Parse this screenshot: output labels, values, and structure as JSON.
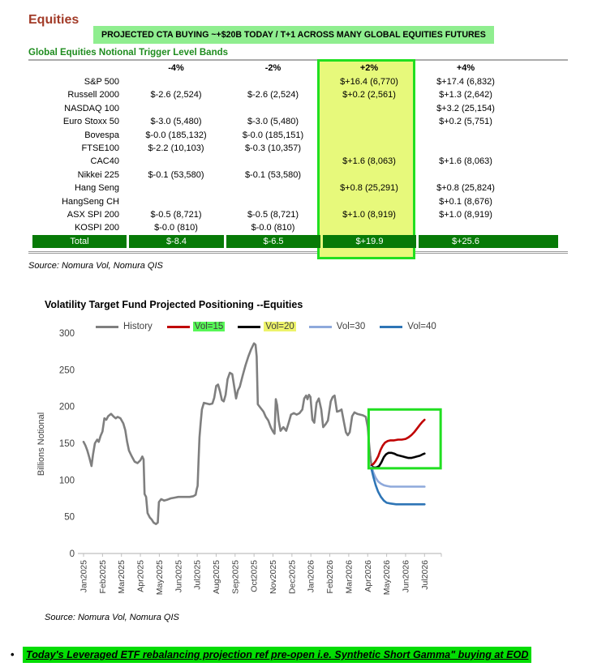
{
  "page": {
    "title": "Equities",
    "banner": "PROJECTED CTA BUYING ~+$20B TODAY / T+1 ACROSS MANY GLOBAL EQUITIES FUTURES",
    "bullet_marker": "•",
    "bullet": "Today's Leveraged ETF rebalancing projection ref pre-open i.e. Synthetic Short Gamma\" buying at EOD"
  },
  "table": {
    "heading": "Global Equities Notional Trigger Level Bands",
    "source": "Source: Nomura Vol, Nomura QIS",
    "columns": [
      "-4%",
      "-2%",
      "+2%",
      "+4%"
    ],
    "highlighted_column": "+2%",
    "rows": [
      {
        "label": "S&P 500",
        "values": [
          "",
          "",
          "$+16.4 (6,770)",
          "$+17.4 (6,832)"
        ]
      },
      {
        "label": "Russell 2000",
        "values": [
          "$-2.6 (2,524)",
          "$-2.6 (2,524)",
          "$+0.2 (2,561)",
          "$+1.3 (2,642)"
        ]
      },
      {
        "label": "NASDAQ 100",
        "values": [
          "",
          "",
          "",
          "$+3.2 (25,154)"
        ]
      },
      {
        "label": "Euro Stoxx 50",
        "values": [
          "$-3.0 (5,480)",
          "$-3.0 (5,480)",
          "",
          "$+0.2 (5,751)"
        ]
      },
      {
        "label": "Bovespa",
        "values": [
          "$-0.0 (185,132)",
          "$-0.0 (185,151)",
          "",
          ""
        ]
      },
      {
        "label": "FTSE100",
        "values": [
          "$-2.2 (10,103)",
          "$-0.3 (10,357)",
          "",
          ""
        ]
      },
      {
        "label": "CAC40",
        "values": [
          "",
          "",
          "$+1.6 (8,063)",
          "$+1.6 (8,063)"
        ]
      },
      {
        "label": "Nikkei 225",
        "values": [
          "$-0.1 (53,580)",
          "$-0.1 (53,580)",
          "",
          ""
        ]
      },
      {
        "label": "Hang Seng",
        "values": [
          "",
          "",
          "$+0.8 (25,291)",
          "$+0.8 (25,824)"
        ]
      },
      {
        "label": "HangSeng CH",
        "values": [
          "",
          "",
          "",
          "$+0.1 (8,676)"
        ]
      },
      {
        "label": "ASX SPI 200",
        "values": [
          "$-0.5 (8,721)",
          "$-0.5 (8,721)",
          "$+1.0 (8,919)",
          "$+1.0 (8,919)"
        ]
      },
      {
        "label": "KOSPI 200",
        "values": [
          "$-0.0 (810)",
          "$-0.0 (810)",
          "",
          ""
        ]
      }
    ],
    "total": {
      "label": "Total",
      "values": [
        "$-8.4",
        "$-6.5",
        "$+19.9",
        "$+25.6"
      ]
    },
    "colors": {
      "highlight_fill": "#E7F97B",
      "highlight_border": "#21DF21",
      "total_row_fill": "#077A07",
      "banner_fill": "#8FEE8F",
      "heading_green": "#1E8C1E",
      "title_red": "#A23B28"
    }
  },
  "chart": {
    "title": "Volatility Target Fund Projected Positioning --Equities",
    "source": "Source: Nomura Vol, Nomura QIS"
  },
  "chart_data": {
    "type": "line",
    "title": "Volatility Target Fund Projected Positioning --Equities",
    "xlabel": "",
    "ylabel": "Billions Notional",
    "ylim": [
      0,
      300
    ],
    "yticks": [
      0,
      50,
      100,
      150,
      200,
      250,
      300
    ],
    "grid": false,
    "legend_position": "top",
    "x_labels": [
      "Jan2025",
      "Feb2025",
      "Mar2025",
      "Apr2025",
      "May2025",
      "Jun2025",
      "Jul2025",
      "Aug2025",
      "Sep2025",
      "Oct2025",
      "Nov2025",
      "Dec2025",
      "Jan2026",
      "Feb2026",
      "Mar2026",
      "Apr2026",
      "May2026",
      "Jun2026",
      "Jul2026"
    ],
    "x_unit": "months from Jan2025",
    "highlight_box": {
      "m_start": 15.05,
      "m_end": 18.85,
      "v_top": 196,
      "v_bottom": 116
    },
    "series": [
      {
        "name": "History",
        "color": "#7F7F7F",
        "label_bg": "",
        "points": [
          [
            0,
            152
          ],
          [
            0.1,
            147
          ],
          [
            0.2,
            140
          ],
          [
            0.3,
            131
          ],
          [
            0.42,
            119
          ],
          [
            0.5,
            135
          ],
          [
            0.6,
            150
          ],
          [
            0.72,
            155
          ],
          [
            0.8,
            152
          ],
          [
            0.9,
            160
          ],
          [
            1.0,
            166
          ],
          [
            1.1,
            184
          ],
          [
            1.2,
            182
          ],
          [
            1.3,
            187
          ],
          [
            1.45,
            190
          ],
          [
            1.6,
            186
          ],
          [
            1.7,
            184
          ],
          [
            1.8,
            186
          ],
          [
            1.95,
            184
          ],
          [
            2.1,
            177
          ],
          [
            2.2,
            168
          ],
          [
            2.3,
            152
          ],
          [
            2.4,
            140
          ],
          [
            2.55,
            132
          ],
          [
            2.7,
            125
          ],
          [
            2.85,
            123
          ],
          [
            3.0,
            127
          ],
          [
            3.1,
            132
          ],
          [
            3.17,
            128
          ],
          [
            3.22,
            81
          ],
          [
            3.3,
            77
          ],
          [
            3.38,
            55
          ],
          [
            3.5,
            49
          ],
          [
            3.6,
            46
          ],
          [
            3.7,
            42
          ],
          [
            3.82,
            40
          ],
          [
            3.92,
            42
          ],
          [
            3.98,
            70
          ],
          [
            4.1,
            74
          ],
          [
            4.25,
            72
          ],
          [
            4.4,
            73
          ],
          [
            4.6,
            75
          ],
          [
            4.8,
            76
          ],
          [
            5.0,
            77
          ],
          [
            5.2,
            77
          ],
          [
            5.4,
            77
          ],
          [
            5.6,
            77
          ],
          [
            5.8,
            78
          ],
          [
            5.92,
            80
          ],
          [
            5.97,
            87
          ],
          [
            6.02,
            92
          ],
          [
            6.07,
            125
          ],
          [
            6.12,
            158
          ],
          [
            6.18,
            177
          ],
          [
            6.25,
            196
          ],
          [
            6.35,
            205
          ],
          [
            6.5,
            204
          ],
          [
            6.65,
            203
          ],
          [
            6.8,
            204
          ],
          [
            6.9,
            212
          ],
          [
            7.0,
            228
          ],
          [
            7.1,
            230
          ],
          [
            7.2,
            221
          ],
          [
            7.3,
            209
          ],
          [
            7.4,
            207
          ],
          [
            7.5,
            216
          ],
          [
            7.6,
            237
          ],
          [
            7.72,
            246
          ],
          [
            7.85,
            244
          ],
          [
            7.95,
            228
          ],
          [
            8.05,
            211
          ],
          [
            8.15,
            222
          ],
          [
            8.25,
            227
          ],
          [
            8.4,
            242
          ],
          [
            8.55,
            256
          ],
          [
            8.7,
            268
          ],
          [
            8.85,
            278
          ],
          [
            9.0,
            286
          ],
          [
            9.08,
            284
          ],
          [
            9.14,
            268
          ],
          [
            9.2,
            203
          ],
          [
            9.35,
            198
          ],
          [
            9.5,
            193
          ],
          [
            9.62,
            186
          ],
          [
            9.75,
            181
          ],
          [
            9.88,
            172
          ],
          [
            10.0,
            166
          ],
          [
            10.08,
            163
          ],
          [
            10.15,
            210
          ],
          [
            10.22,
            202
          ],
          [
            10.3,
            181
          ],
          [
            10.4,
            167
          ],
          [
            10.55,
            172
          ],
          [
            10.7,
            167
          ],
          [
            10.82,
            177
          ],
          [
            10.95,
            189
          ],
          [
            11.1,
            191
          ],
          [
            11.25,
            189
          ],
          [
            11.4,
            191
          ],
          [
            11.55,
            196
          ],
          [
            11.65,
            211
          ],
          [
            11.75,
            215
          ],
          [
            11.82,
            210
          ],
          [
            11.9,
            216
          ],
          [
            11.98,
            213
          ],
          [
            12.08,
            182
          ],
          [
            12.18,
            178
          ],
          [
            12.3,
            205
          ],
          [
            12.42,
            211
          ],
          [
            12.55,
            196
          ],
          [
            12.65,
            172
          ],
          [
            12.78,
            176
          ],
          [
            12.9,
            181
          ],
          [
            13.05,
            207
          ],
          [
            13.15,
            213
          ],
          [
            13.25,
            215
          ],
          [
            13.38,
            193
          ],
          [
            13.5,
            194
          ],
          [
            13.62,
            196
          ],
          [
            13.75,
            178
          ],
          [
            13.85,
            165
          ],
          [
            13.95,
            161
          ],
          [
            14.05,
            165
          ],
          [
            14.18,
            187
          ],
          [
            14.3,
            192
          ],
          [
            14.45,
            190
          ],
          [
            14.6,
            189
          ],
          [
            14.75,
            188
          ],
          [
            14.9,
            186
          ],
          [
            15.0,
            172
          ],
          [
            15.07,
            150
          ],
          [
            15.13,
            134
          ],
          [
            15.2,
            120
          ]
        ]
      },
      {
        "name": "Vol=15",
        "color": "#C00000",
        "label_bg": "#57F757",
        "points": [
          [
            15.2,
            120
          ],
          [
            15.3,
            122
          ],
          [
            15.42,
            126
          ],
          [
            15.55,
            132
          ],
          [
            15.68,
            141
          ],
          [
            15.8,
            147
          ],
          [
            15.92,
            151
          ],
          [
            16.05,
            153
          ],
          [
            16.2,
            154
          ],
          [
            16.4,
            154
          ],
          [
            16.6,
            155
          ],
          [
            16.8,
            155
          ],
          [
            17.0,
            156
          ],
          [
            17.15,
            158
          ],
          [
            17.3,
            161
          ],
          [
            17.45,
            165
          ],
          [
            17.6,
            170
          ],
          [
            17.75,
            175
          ],
          [
            17.88,
            179
          ],
          [
            18.0,
            182
          ]
        ]
      },
      {
        "name": "Vol=20",
        "color": "#000000",
        "label_bg": "#EDF36B",
        "points": [
          [
            15.2,
            119
          ],
          [
            15.3,
            117
          ],
          [
            15.45,
            117
          ],
          [
            15.6,
            119
          ],
          [
            15.72,
            124
          ],
          [
            15.85,
            131
          ],
          [
            15.97,
            135
          ],
          [
            16.1,
            137
          ],
          [
            16.25,
            137
          ],
          [
            16.4,
            136
          ],
          [
            16.55,
            134
          ],
          [
            16.7,
            133
          ],
          [
            16.85,
            132
          ],
          [
            17.0,
            131
          ],
          [
            17.15,
            130
          ],
          [
            17.3,
            130
          ],
          [
            17.45,
            131
          ],
          [
            17.6,
            132
          ],
          [
            17.75,
            133
          ],
          [
            17.9,
            135
          ],
          [
            18.0,
            136
          ]
        ]
      },
      {
        "name": "Vol=30",
        "color": "#8EA9DB",
        "label_bg": "",
        "points": [
          [
            15.2,
            118
          ],
          [
            15.3,
            110
          ],
          [
            15.42,
            103
          ],
          [
            15.55,
            98
          ],
          [
            15.7,
            95
          ],
          [
            15.85,
            93
          ],
          [
            16.0,
            92
          ],
          [
            16.2,
            91
          ],
          [
            16.5,
            91
          ],
          [
            17.0,
            91
          ],
          [
            17.5,
            91
          ],
          [
            18.0,
            91
          ]
        ]
      },
      {
        "name": "Vol=40",
        "color": "#2E75B6",
        "label_bg": "",
        "points": [
          [
            15.2,
            115
          ],
          [
            15.3,
            104
          ],
          [
            15.42,
            93
          ],
          [
            15.55,
            84
          ],
          [
            15.7,
            77
          ],
          [
            15.85,
            72
          ],
          [
            16.0,
            69
          ],
          [
            16.2,
            68
          ],
          [
            16.5,
            67
          ],
          [
            17.0,
            67
          ],
          [
            17.5,
            67
          ],
          [
            18.0,
            67
          ]
        ]
      }
    ]
  }
}
